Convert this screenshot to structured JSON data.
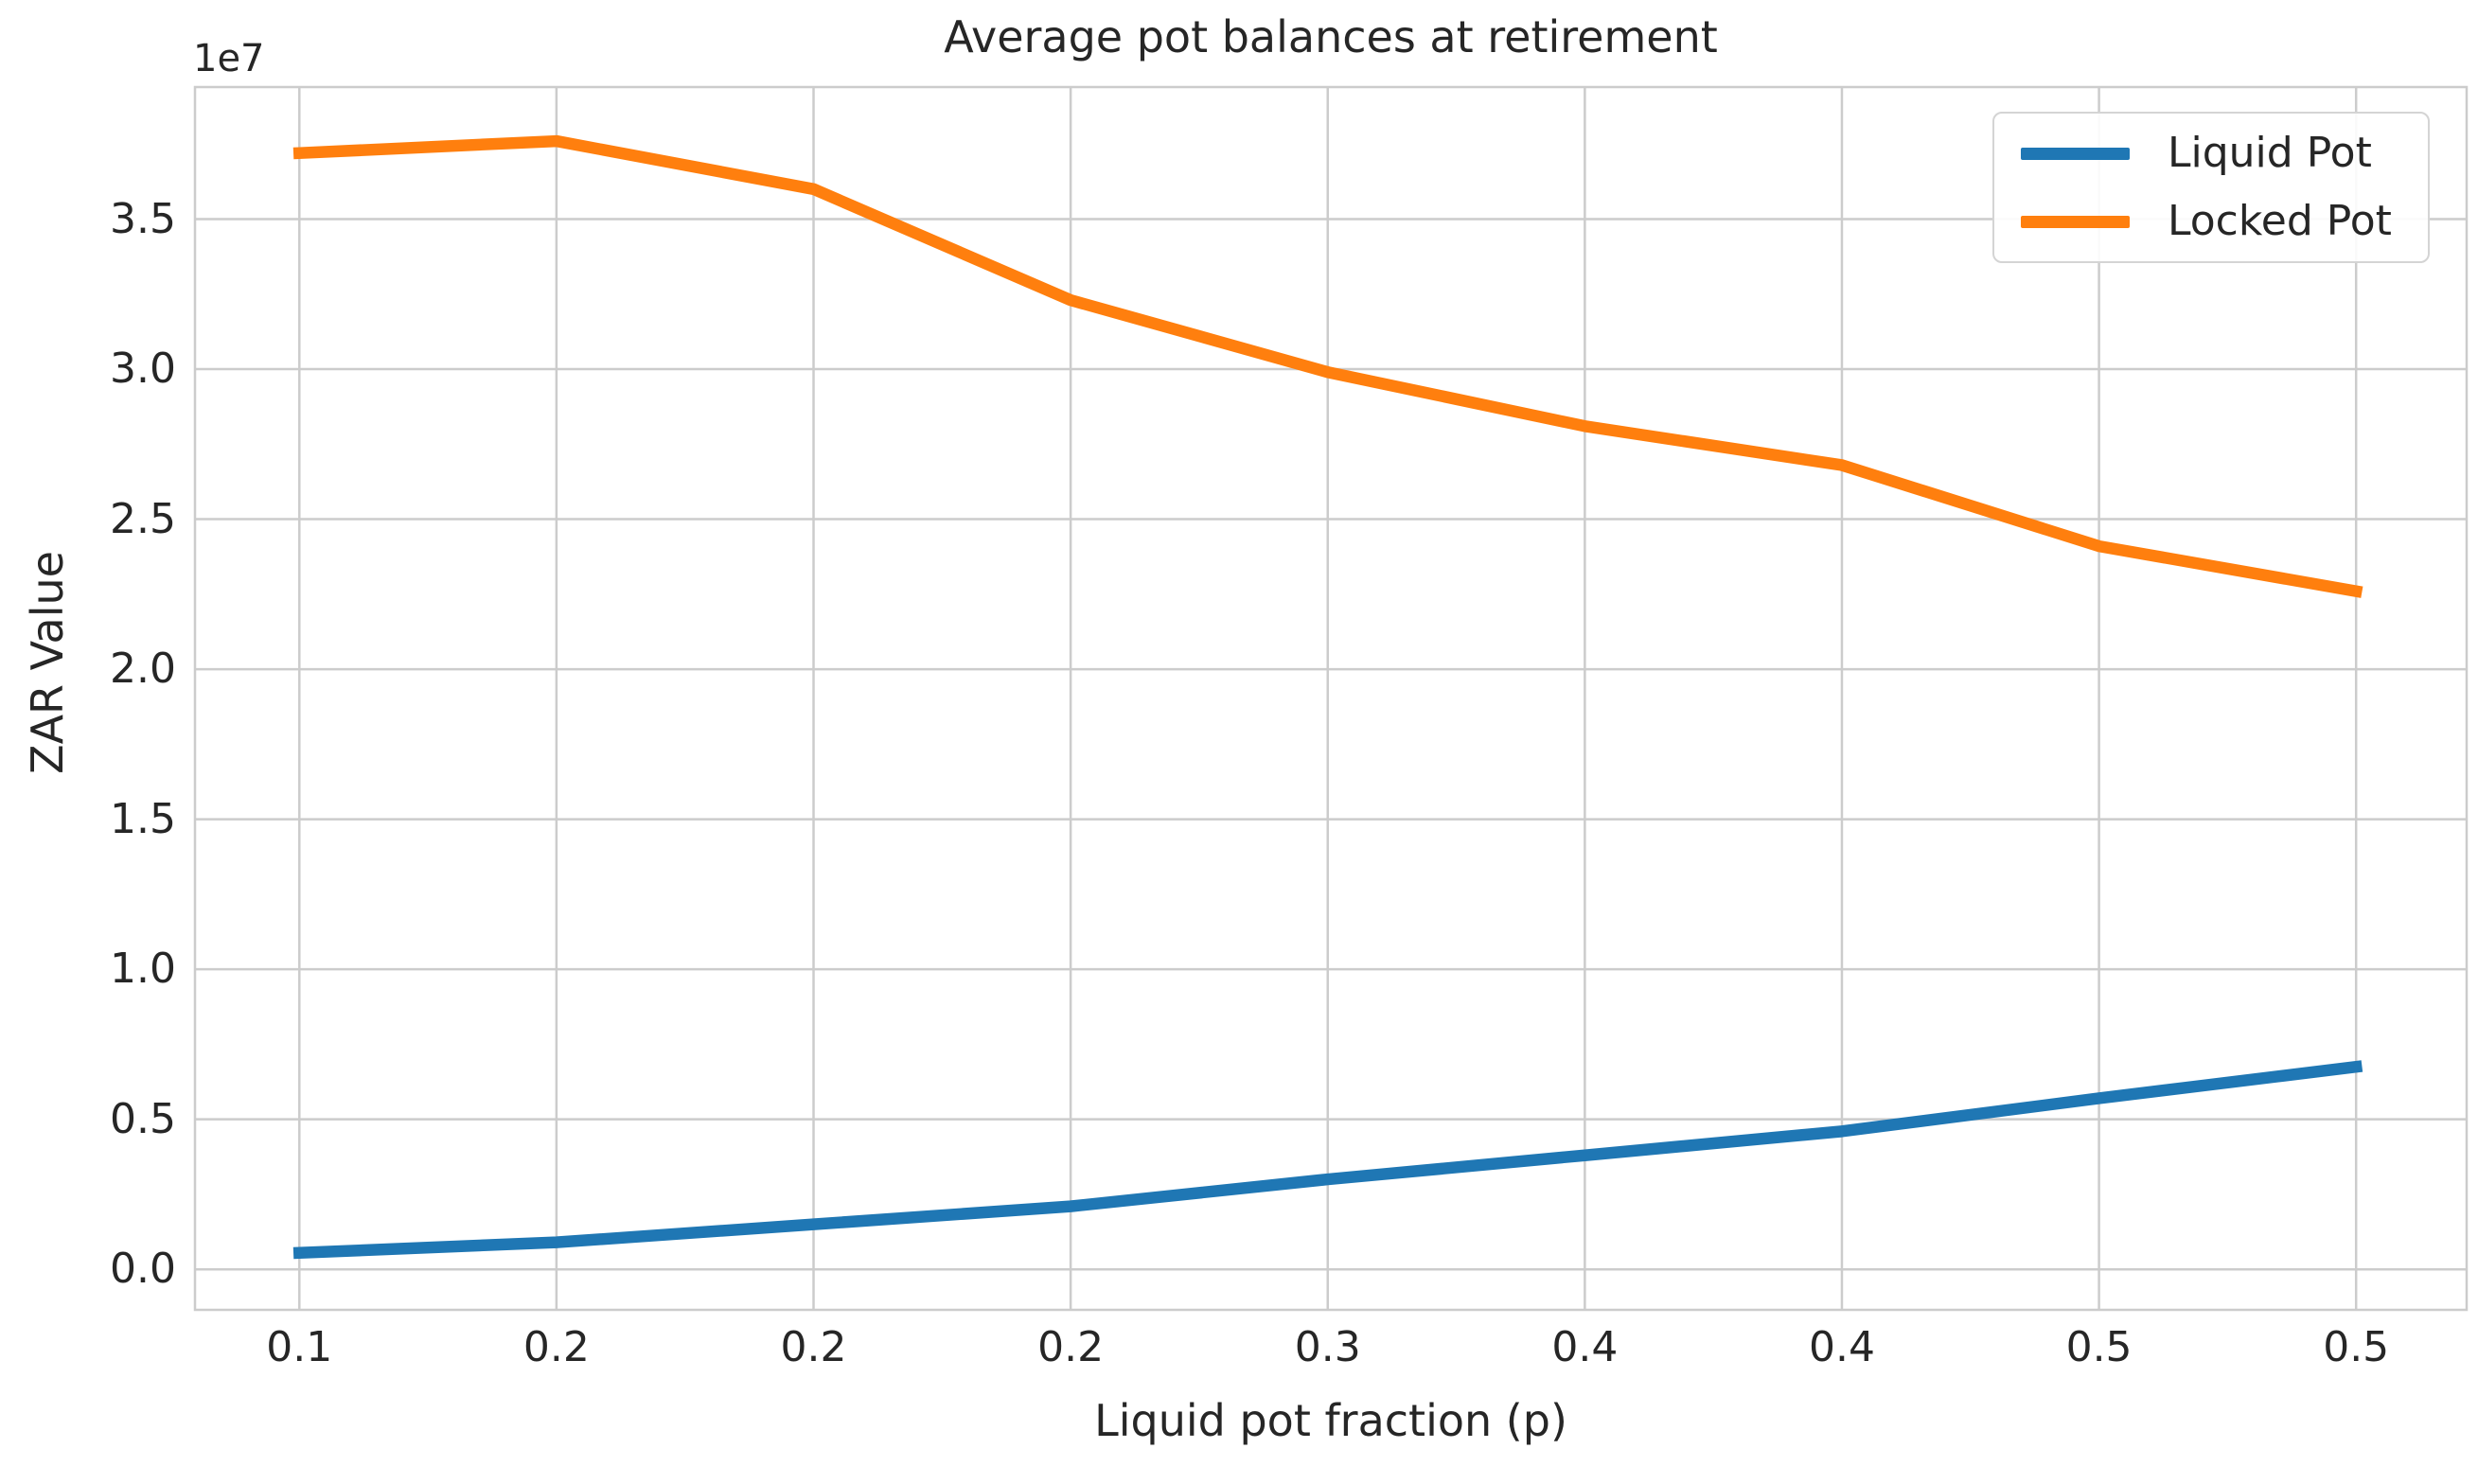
{
  "chart_data": {
    "type": "line",
    "title": "Average pot balances at retirement",
    "xlabel": "Liquid pot fraction (p)",
    "ylabel": "ZAR Value",
    "y_offset_label": "1e7",
    "y_scale": 10000000,
    "grid": true,
    "legend_position": "upper right",
    "x": [
      0.1,
      0.15,
      0.2,
      0.25,
      0.3,
      0.35,
      0.4,
      0.45,
      0.5
    ],
    "xtick_labels": [
      "0.1",
      "0.2",
      "0.2",
      "0.2",
      "0.3",
      "0.4",
      "0.4",
      "0.5",
      "0.5"
    ],
    "ytick_values": [
      0,
      5000000,
      10000000,
      15000000,
      20000000,
      25000000,
      30000000,
      35000000
    ],
    "ytick_labels": [
      "0.0",
      "0.5",
      "1.0",
      "1.5",
      "2.0",
      "2.5",
      "3.0",
      "3.5"
    ],
    "xlim": [
      0.0797,
      0.5215
    ],
    "ylim": [
      -1350000,
      39400000
    ],
    "series": [
      {
        "name": "Liquid Pot",
        "color": "#1f77b4",
        "values": [
          550000,
          900000,
          1500000,
          2100000,
          3000000,
          3800000,
          4600000,
          5700000,
          6750000
        ]
      },
      {
        "name": "Locked Pot",
        "color": "#ff7f0e",
        "values": [
          37200000,
          37600000,
          36000000,
          32300000,
          29900000,
          28100000,
          26800000,
          24100000,
          22600000
        ]
      }
    ],
    "style": {
      "background": "#ffffff",
      "text_color": "#262626",
      "grid_color": "#cccccc",
      "spine_color": "#cccccc"
    }
  },
  "legend": {
    "items": [
      {
        "label": "Liquid Pot",
        "color": "#1f77b4"
      },
      {
        "label": "Locked Pot",
        "color": "#ff7f0e"
      }
    ]
  }
}
